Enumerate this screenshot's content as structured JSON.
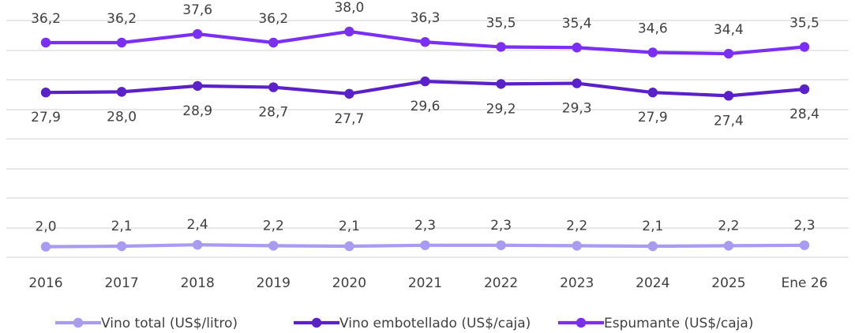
{
  "chart_data": {
    "type": "line",
    "x": [
      "2016",
      "2017",
      "2018",
      "2019",
      "2020",
      "2021",
      "2022",
      "2023",
      "2024",
      "2025",
      "Ene 26"
    ],
    "grid": true,
    "legend_position": "bottom",
    "series": [
      {
        "name": "Vino total (US$/litro)",
        "color": "#a99bf2",
        "values": [
          2.0,
          2.1,
          2.4,
          2.2,
          2.1,
          2.3,
          2.3,
          2.2,
          2.1,
          2.2,
          2.3
        ],
        "labels": [
          "2,0",
          "2,1",
          "2,4",
          "2,2",
          "2,1",
          "2,3",
          "2,3",
          "2,2",
          "2,1",
          "2,2",
          "2,3"
        ],
        "label_position": "above"
      },
      {
        "name": "Vino embotellado (US$/caja)",
        "color": "#5b21c9",
        "values": [
          27.9,
          28.0,
          28.9,
          28.7,
          27.7,
          29.6,
          29.2,
          29.3,
          27.9,
          27.4,
          28.4
        ],
        "labels": [
          "27,9",
          "28,0",
          "28,9",
          "28,7",
          "27,7",
          "29,6",
          "29,2",
          "29,3",
          "27,9",
          "27,4",
          "28,4"
        ],
        "label_position": "below"
      },
      {
        "name": "Espumante (US$/caja)",
        "color": "#7b2ff2",
        "values": [
          36.2,
          36.2,
          37.6,
          36.2,
          38.0,
          36.3,
          35.5,
          35.4,
          34.6,
          34.4,
          35.5
        ],
        "labels": [
          "36,2",
          "36,2",
          "37,6",
          "36,2",
          "38,0",
          "36,3",
          "35,5",
          "35,4",
          "34,6",
          "34,4",
          "35,5"
        ],
        "label_position": "above"
      }
    ]
  }
}
